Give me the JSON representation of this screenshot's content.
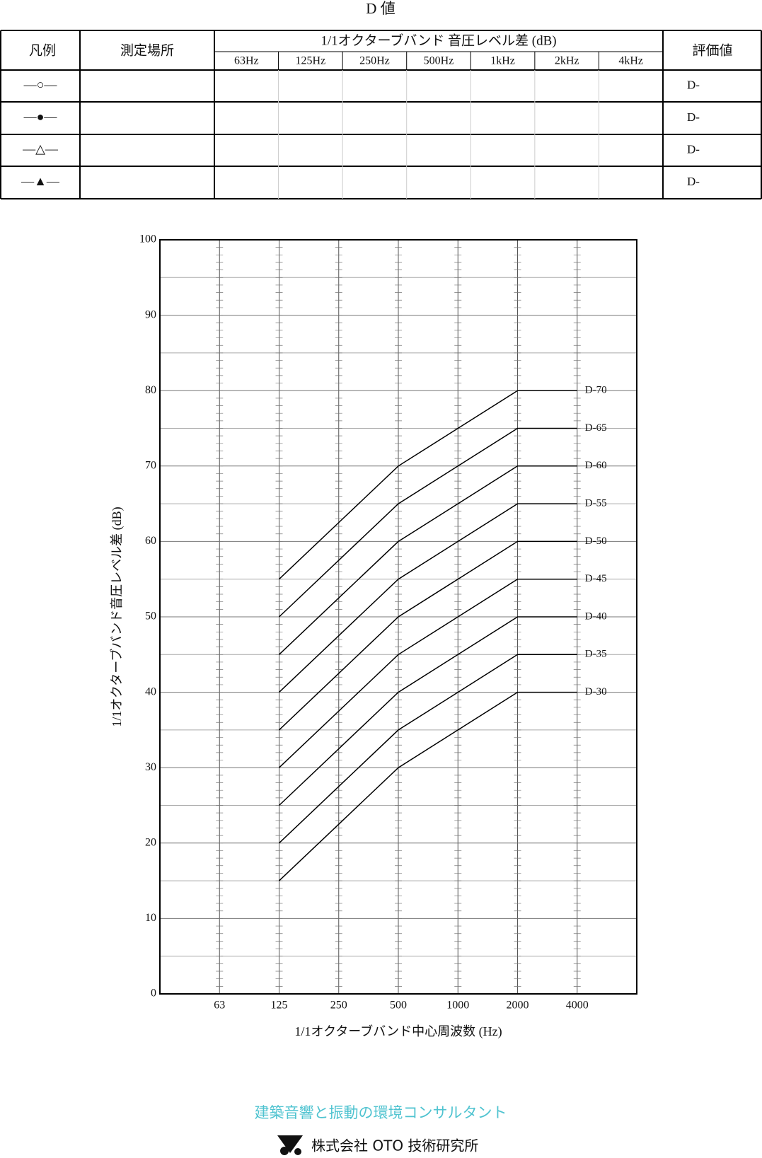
{
  "title": "D 値",
  "table": {
    "header": {
      "legend": "凡例",
      "place": "測定場所",
      "group": "1/1オクターブバンド 音圧レベル差 (dB)",
      "bands": [
        "63Hz",
        "125Hz",
        "250Hz",
        "500Hz",
        "1kHz",
        "2kHz",
        "4kHz"
      ],
      "eval": "評価値"
    },
    "rows": [
      {
        "symbol": "—○—",
        "eval": "D-"
      },
      {
        "symbol": "—●—",
        "eval": "D-"
      },
      {
        "symbol": "—△—",
        "eval": "D-"
      },
      {
        "symbol": "—▲—",
        "eval": "D-"
      }
    ]
  },
  "chart_data": {
    "type": "line",
    "xlabel": "1/1オクターブバンド中心周波数 (Hz)",
    "ylabel": "1/1オクターブバンド音圧レベル差 (dB)",
    "categories": [
      "63",
      "125",
      "250",
      "500",
      "1000",
      "2000",
      "4000"
    ],
    "ylim": [
      0,
      100
    ],
    "yticks": [
      0,
      10,
      20,
      30,
      40,
      50,
      60,
      70,
      80,
      90,
      100
    ],
    "minor_yticks": [
      5,
      15,
      25,
      35,
      45,
      55,
      65,
      75,
      85,
      95
    ],
    "grid": true,
    "color": "#000000",
    "series": [
      {
        "name": "D-70",
        "values": [
          null,
          55,
          62.5,
          70,
          75,
          80,
          80
        ]
      },
      {
        "name": "D-65",
        "values": [
          null,
          50,
          57.5,
          65,
          70,
          75,
          75
        ]
      },
      {
        "name": "D-60",
        "values": [
          null,
          45,
          52.5,
          60,
          65,
          70,
          70
        ]
      },
      {
        "name": "D-55",
        "values": [
          null,
          40,
          47.5,
          55,
          60,
          65,
          65
        ]
      },
      {
        "name": "D-50",
        "values": [
          null,
          35,
          42.5,
          50,
          55,
          60,
          60
        ]
      },
      {
        "name": "D-45",
        "values": [
          null,
          30,
          37.5,
          45,
          50,
          55,
          55
        ]
      },
      {
        "name": "D-40",
        "values": [
          null,
          25,
          32.5,
          40,
          45,
          50,
          50
        ]
      },
      {
        "name": "D-35",
        "values": [
          null,
          20,
          27.5,
          35,
          40,
          45,
          45
        ]
      },
      {
        "name": "D-30",
        "values": [
          null,
          15,
          22.5,
          30,
          35,
          40,
          40
        ]
      }
    ]
  },
  "footer": {
    "tagline": "建築音響と振動の環境コンサルタント",
    "company": "株式会社 OTO 技術研究所"
  }
}
